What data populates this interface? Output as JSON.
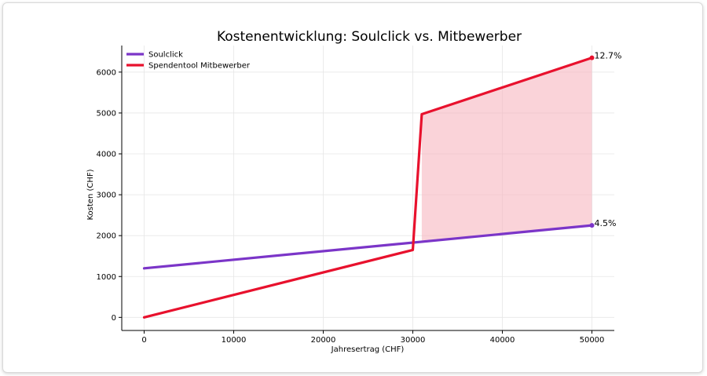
{
  "chart_data": {
    "type": "line",
    "title": "Kostenentwicklung: Soulclick vs. Mitbewerber",
    "xlabel": "Jahresertrag (CHF)",
    "ylabel": "Kosten (CHF)",
    "xlim": [
      -2500,
      52500
    ],
    "ylim": [
      -320,
      6650
    ],
    "xticks": [
      0,
      10000,
      20000,
      30000,
      40000,
      50000
    ],
    "yticks": [
      0,
      1000,
      2000,
      3000,
      4000,
      5000,
      6000
    ],
    "grid": true,
    "legend": "top-left",
    "series": [
      {
        "name": "Soulclick",
        "color": "#7b35c8",
        "x": [
          0,
          50000
        ],
        "y": [
          1200,
          2250
        ]
      },
      {
        "name": "Spendentool Mitbewerber",
        "color": "#e8112d",
        "x": [
          0,
          30000,
          31000,
          50000
        ],
        "y": [
          0,
          1650,
          4970,
          6350
        ]
      }
    ],
    "fill_between": {
      "color": "#f7b6c0",
      "x": [
        31000,
        50000
      ],
      "upper": [
        4970,
        6350
      ],
      "lower": [
        1880,
        2250
      ]
    },
    "annotations": [
      {
        "text": "12.7%",
        "x": 50000,
        "y": 6350,
        "series": 1
      },
      {
        "text": "4.5%",
        "x": 50000,
        "y": 2250,
        "series": 0
      }
    ]
  }
}
